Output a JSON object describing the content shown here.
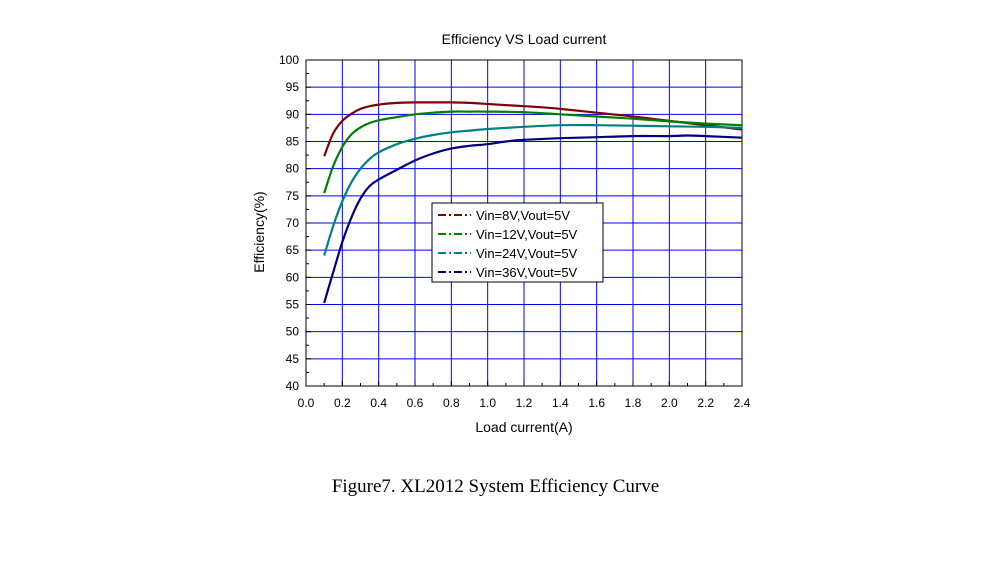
{
  "chart_data": {
    "type": "line",
    "title": "Efficiency VS Load current",
    "xlabel": "Load current(A)",
    "ylabel": "Efficiency(%)",
    "xlim": [
      0.0,
      2.4
    ],
    "ylim": [
      40,
      100
    ],
    "xticks": [
      "0.0",
      "0.2",
      "0.4",
      "0.6",
      "0.8",
      "1.0",
      "1.2",
      "1.4",
      "1.6",
      "1.8",
      "2.0",
      "2.2",
      "2.4"
    ],
    "yticks": [
      "40",
      "45",
      "50",
      "55",
      "60",
      "65",
      "70",
      "75",
      "80",
      "85",
      "90",
      "95",
      "100"
    ],
    "grid": true,
    "legend_position": "center",
    "series": [
      {
        "name": "Vin=8V,Vout=5V",
        "color": "#800000",
        "x": [
          0.1,
          0.15,
          0.2,
          0.25,
          0.3,
          0.35,
          0.4,
          0.5,
          0.6,
          0.7,
          0.8,
          0.9,
          1.0,
          1.1,
          1.2,
          1.3,
          1.4,
          1.6,
          1.8,
          2.0,
          2.2,
          2.4
        ],
        "y": [
          82.3,
          86.5,
          88.8,
          90.1,
          91.0,
          91.5,
          91.8,
          92.1,
          92.2,
          92.2,
          92.2,
          92.1,
          91.9,
          91.7,
          91.5,
          91.3,
          91.0,
          90.3,
          89.6,
          88.8,
          88.0,
          87.2
        ]
      },
      {
        "name": "Vin=12V,Vout=5V",
        "color": "#008000",
        "x": [
          0.1,
          0.15,
          0.2,
          0.25,
          0.3,
          0.35,
          0.4,
          0.5,
          0.6,
          0.7,
          0.8,
          0.9,
          1.0,
          1.2,
          1.4,
          1.6,
          1.8,
          2.0,
          2.2,
          2.4
        ],
        "y": [
          75.5,
          80.5,
          84.0,
          86.3,
          87.6,
          88.4,
          88.9,
          89.5,
          90.0,
          90.3,
          90.5,
          90.5,
          90.5,
          90.4,
          90.0,
          89.6,
          89.2,
          88.7,
          88.3,
          88.0
        ]
      },
      {
        "name": "Vin=24V,Vout=5V",
        "color": "#008080",
        "x": [
          0.1,
          0.15,
          0.2,
          0.25,
          0.3,
          0.35,
          0.4,
          0.5,
          0.6,
          0.7,
          0.8,
          0.9,
          1.0,
          1.2,
          1.4,
          1.6,
          1.8,
          2.0,
          2.2,
          2.4
        ],
        "y": [
          64.0,
          69.5,
          74.0,
          77.5,
          80.0,
          81.8,
          83.0,
          84.5,
          85.5,
          86.2,
          86.7,
          87.0,
          87.3,
          87.7,
          88.0,
          88.0,
          87.9,
          87.8,
          87.7,
          87.5
        ]
      },
      {
        "name": "Vin=36V,Vout=5V",
        "color": "#000080",
        "x": [
          0.1,
          0.15,
          0.2,
          0.25,
          0.3,
          0.35,
          0.4,
          0.5,
          0.6,
          0.7,
          0.8,
          0.9,
          1.0,
          1.1,
          1.2,
          1.4,
          1.6,
          1.8,
          2.0,
          2.1,
          2.2,
          2.4
        ],
        "y": [
          55.3,
          61.0,
          66.5,
          71.0,
          74.5,
          76.8,
          78.0,
          79.8,
          81.5,
          82.8,
          83.7,
          84.2,
          84.5,
          85.0,
          85.3,
          85.6,
          85.8,
          86.0,
          86.0,
          86.1,
          86.0,
          85.7
        ]
      }
    ]
  },
  "caption": "Figure7. XL2012 System Efficiency Curve"
}
